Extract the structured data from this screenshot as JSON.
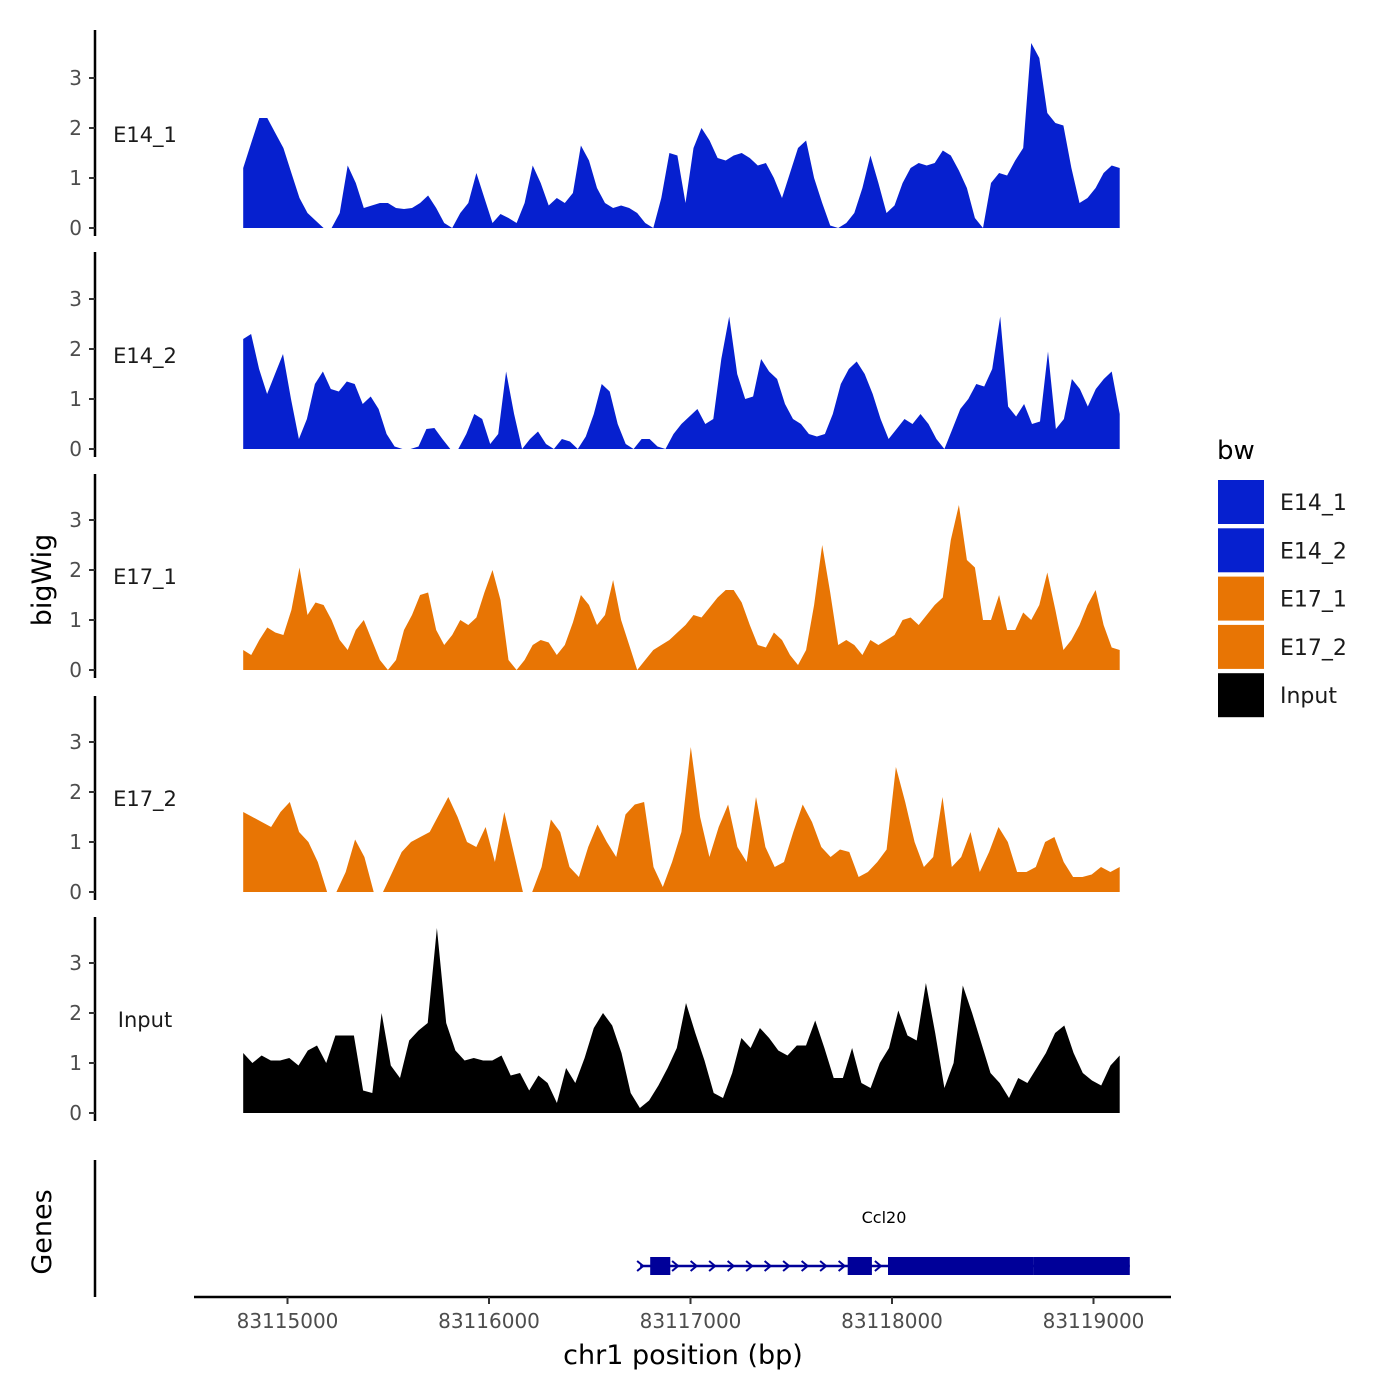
{
  "chart_data": {
    "type": "area",
    "ylabel": "bigWig",
    "xlabel": "chr1 position (bp)",
    "x_ticks": [
      "83115000",
      "83116000",
      "83117000",
      "83118000",
      "83119000"
    ],
    "x_tick_values": [
      83115000,
      83116000,
      83117000,
      83118000,
      83119000
    ],
    "xlim": [
      83114720,
      83119380
    ],
    "ylim": [
      0,
      3.9
    ],
    "y_ticks": [
      "0",
      "1",
      "2",
      "3"
    ],
    "y_tick_values": [
      0,
      1,
      2,
      3
    ],
    "data_start": 83114780,
    "data_step": 50,
    "series": [
      {
        "name": "E14_1",
        "color": "#0620CF",
        "values": [
          1.2,
          1.7,
          2.2,
          2.2,
          1.9,
          1.6,
          1.1,
          0.6,
          0.3,
          0.15,
          0,
          0,
          0.3,
          1.25,
          0.9,
          0.4,
          0.45,
          0.5,
          0.5,
          0.4,
          0.38,
          0.4,
          0.5,
          0.65,
          0.4,
          0.1,
          0,
          0.3,
          0.5,
          1.1,
          0.6,
          0.1,
          0.28,
          0.2,
          0.1,
          0.5,
          1.25,
          0.9,
          0.45,
          0.6,
          0.5,
          0.7,
          1.65,
          1.35,
          0.8,
          0.5,
          0.4,
          0.45,
          0.4,
          0.3,
          0.1,
          0,
          0.6,
          1.5,
          1.45,
          0.5,
          1.6,
          2,
          1.75,
          1.4,
          1.35,
          1.45,
          1.5,
          1.4,
          1.25,
          1.3,
          1,
          0.6,
          1.1,
          1.6,
          1.75,
          1,
          0.5,
          0.05,
          0,
          0.1,
          0.3,
          0.8,
          1.45,
          0.9,
          0.3,
          0.45,
          0.9,
          1.2,
          1.3,
          1.25,
          1.3,
          1.55,
          1.45,
          1.15,
          0.8,
          0.2,
          0,
          0.9,
          1.1,
          1.05,
          1.35,
          1.6,
          3.7,
          3.4,
          2.3,
          2.1,
          2.05,
          1.2,
          0.5,
          0.6,
          0.8,
          1.1,
          1.25,
          1.2
        ]
      },
      {
        "name": "E14_2",
        "color": "#0620CF",
        "values": [
          2.2,
          2.3,
          1.6,
          1.1,
          1.5,
          1.9,
          1,
          0.2,
          0.6,
          1.3,
          1.55,
          1.2,
          1.15,
          1.35,
          1.3,
          0.9,
          1.05,
          0.8,
          0.3,
          0.05,
          0,
          0,
          0.05,
          0.4,
          0.42,
          0.2,
          0,
          0,
          0.3,
          0.7,
          0.6,
          0.1,
          0.3,
          1.55,
          0.7,
          0,
          0.2,
          0.35,
          0.1,
          0,
          0.2,
          0.15,
          0,
          0.25,
          0.7,
          1.3,
          1.15,
          0.5,
          0.1,
          0,
          0.2,
          0.2,
          0.05,
          0,
          0.3,
          0.5,
          0.65,
          0.8,
          0.5,
          0.6,
          1.8,
          2.65,
          1.5,
          1.0,
          1.05,
          1.8,
          1.55,
          1.4,
          0.9,
          0.6,
          0.5,
          0.3,
          0.25,
          0.3,
          0.7,
          1.3,
          1.6,
          1.75,
          1.5,
          1.1,
          0.6,
          0.2,
          0.4,
          0.6,
          0.5,
          0.7,
          0.5,
          0.2,
          0,
          0.4,
          0.8,
          1.0,
          1.3,
          1.25,
          1.6,
          2.65,
          0.85,
          0.65,
          0.9,
          0.5,
          0.55,
          1.95,
          0.4,
          0.6,
          1.4,
          1.2,
          0.85,
          1.2,
          1.4,
          1.55,
          0.7
        ]
      },
      {
        "name": "E17_1",
        "color": "#E87504",
        "values": [
          0.4,
          0.3,
          0.6,
          0.85,
          0.75,
          0.7,
          1.2,
          2.05,
          1.1,
          1.35,
          1.3,
          1.0,
          0.6,
          0.4,
          0.8,
          1.0,
          0.6,
          0.2,
          0,
          0.2,
          0.8,
          1.1,
          1.5,
          1.55,
          0.8,
          0.5,
          0.7,
          1.0,
          0.9,
          1.05,
          1.55,
          2.0,
          1.4,
          0.2,
          0,
          0.2,
          0.5,
          0.6,
          0.55,
          0.3,
          0.5,
          0.95,
          1.5,
          1.3,
          0.9,
          1.1,
          1.8,
          1.0,
          0.5,
          0,
          0.2,
          0.4,
          0.5,
          0.6,
          0.75,
          0.9,
          1.1,
          1.05,
          1.25,
          1.45,
          1.6,
          1.6,
          1.35,
          0.9,
          0.5,
          0.45,
          0.75,
          0.6,
          0.3,
          0.1,
          0.4,
          1.3,
          2.5,
          1.55,
          0.5,
          0.6,
          0.5,
          0.3,
          0.6,
          0.5,
          0.6,
          0.7,
          1.0,
          1.05,
          0.9,
          1.1,
          1.3,
          1.45,
          2.6,
          3.3,
          2.2,
          2.05,
          1.0,
          1.0,
          1.5,
          0.8,
          0.8,
          1.15,
          1.0,
          1.3,
          1.95,
          1.2,
          0.4,
          0.6,
          0.9,
          1.3,
          1.6,
          0.9,
          0.45,
          0.4
        ]
      },
      {
        "name": "E17_2",
        "color": "#E87504",
        "values": [
          1.6,
          1.5,
          1.4,
          1.3,
          1.6,
          1.8,
          1.2,
          1.0,
          0.6,
          0,
          0,
          0.4,
          1.05,
          0.7,
          0,
          0,
          0.4,
          0.8,
          1.0,
          1.1,
          1.2,
          1.55,
          1.9,
          1.5,
          1.0,
          0.9,
          1.3,
          0.6,
          1.6,
          0.8,
          0,
          0,
          0.5,
          1.45,
          1.2,
          0.5,
          0.3,
          0.9,
          1.35,
          1.0,
          0.7,
          1.55,
          1.75,
          1.8,
          0.5,
          0.1,
          0.6,
          1.2,
          2.9,
          1.5,
          0.7,
          1.3,
          1.75,
          0.9,
          0.6,
          1.9,
          0.9,
          0.5,
          0.6,
          1.2,
          1.75,
          1.4,
          0.9,
          0.7,
          0.85,
          0.8,
          0.3,
          0.4,
          0.6,
          0.85,
          2.5,
          1.8,
          1.0,
          0.5,
          0.7,
          1.9,
          0.5,
          0.7,
          1.2,
          0.4,
          0.8,
          1.3,
          1.0,
          0.4,
          0.4,
          0.5,
          1.0,
          1.1,
          0.6,
          0.3,
          0.3,
          0.35,
          0.5,
          0.4,
          0.5
        ]
      },
      {
        "name": "Input",
        "color": "#000000",
        "values": [
          1.2,
          1.0,
          1.15,
          1.05,
          1.05,
          1.1,
          0.95,
          1.25,
          1.35,
          1.0,
          1.55,
          1.55,
          1.55,
          0.45,
          0.4,
          2.0,
          0.95,
          0.7,
          1.45,
          1.65,
          1.8,
          3.7,
          1.8,
          1.25,
          1.05,
          1.1,
          1.05,
          1.05,
          1.15,
          0.75,
          0.8,
          0.45,
          0.75,
          0.6,
          0.2,
          0.9,
          0.6,
          1.1,
          1.7,
          2.0,
          1.75,
          1.2,
          0.4,
          0.1,
          0.25,
          0.55,
          0.9,
          1.3,
          2.2,
          1.6,
          1.05,
          0.4,
          0.3,
          0.8,
          1.5,
          1.3,
          1.7,
          1.5,
          1.25,
          1.15,
          1.35,
          1.35,
          1.85,
          1.3,
          0.7,
          0.7,
          1.3,
          0.6,
          0.5,
          1.0,
          1.3,
          2.05,
          1.55,
          1.45,
          2.6,
          1.6,
          0.5,
          1.0,
          2.55,
          2.0,
          1.4,
          0.8,
          0.6,
          0.3,
          0.7,
          0.6,
          0.9,
          1.2,
          1.6,
          1.75,
          1.2,
          0.8,
          0.65,
          0.55,
          0.95,
          1.15
        ]
      }
    ],
    "legend": {
      "title": "bw",
      "position": "right",
      "entries": [
        {
          "label": "E14_1",
          "color": "#0620CF"
        },
        {
          "label": "E14_2",
          "color": "#0620CF"
        },
        {
          "label": "E17_1",
          "color": "#E87504"
        },
        {
          "label": "E17_2",
          "color": "#E87504"
        },
        {
          "label": "Input",
          "color": "#000000"
        }
      ]
    },
    "gene_track": {
      "label": "Genes",
      "gene_name": "Ccl20",
      "color": "#000099",
      "start": 83116750,
      "end": 83119180,
      "strand": "+",
      "exons": [
        [
          83116800,
          83116900
        ],
        [
          83117780,
          83117900
        ],
        [
          83117980,
          83118700
        ],
        [
          83118700,
          83119180
        ]
      ]
    }
  }
}
